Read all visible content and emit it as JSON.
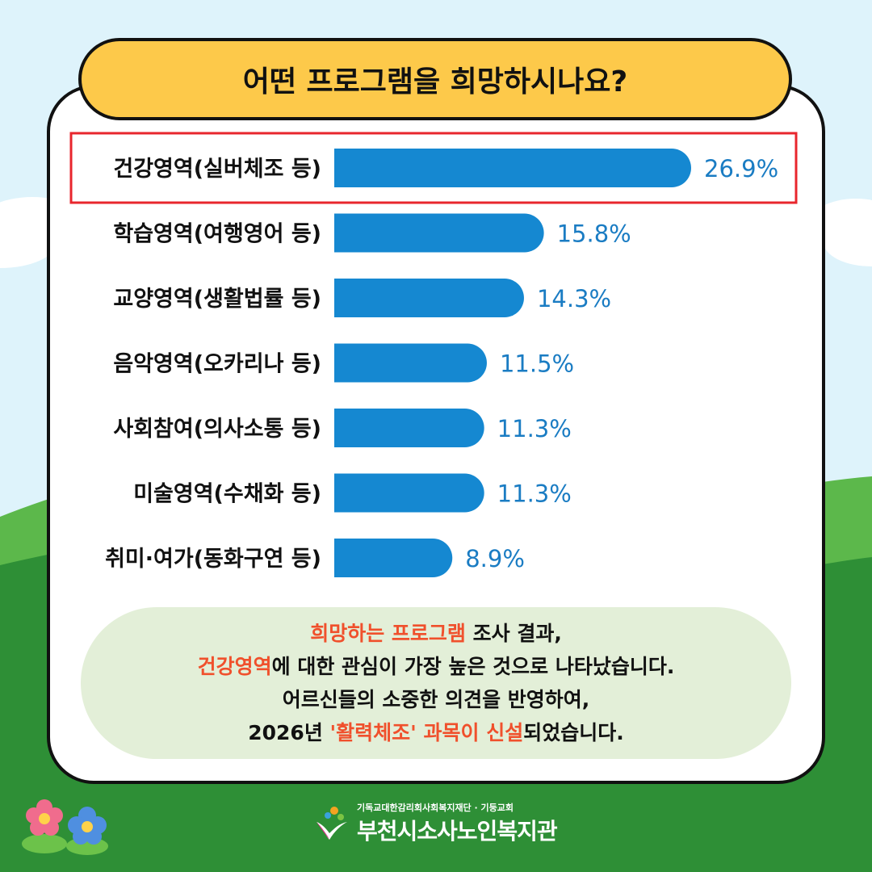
{
  "title": "어떤 프로그램을 희망하시나요?",
  "chart_data": {
    "type": "bar",
    "orientation": "horizontal",
    "categories": [
      "건강영역(실버체조 등)",
      "학습영역(여행영어 등)",
      "교양영역(생활법률 등)",
      "음악영역(오카리나 등)",
      "사회참여(의사소통 등)",
      "미술영역(수채화 등)",
      "취미·여가(동화구연 등)"
    ],
    "values": [
      26.9,
      15.8,
      14.3,
      11.5,
      11.3,
      11.3,
      8.9
    ],
    "value_labels": [
      "26.9%",
      "15.8%",
      "14.3%",
      "11.5%",
      "11.3%",
      "11.3%",
      "8.9%"
    ],
    "highlighted_category": "건강영역(실버체조 등)",
    "xlim": [
      0,
      26.9
    ],
    "grid": false,
    "bar_color": "#1588d1",
    "label_color": "#1a7cc3",
    "highlight_color": "#e8262d"
  },
  "summary": {
    "line1_hl": "희망하는 프로그램",
    "line1_rest": " 조사 결과,",
    "line2_hl": "건강영역",
    "line2_rest": "에 대한 관심이 가장 높은 것으로 나타났습니다.",
    "line3": "어르신들의 소중한 의견을 반영하여,",
    "line4_pre": "2026년 ",
    "line4_hl": "'활력체조' 과목이 신설",
    "line4_rest": "되었습니다."
  },
  "footer": {
    "org_top": "기독교대한감리회사회복지재단",
    "org_top2": "기둥교회",
    "org_main": "부천시소사노인복지관"
  },
  "colors": {
    "sky": "#def3fb",
    "grass": "#2e8f36",
    "title_bg": "#fdc94a",
    "accent": "#f0502c"
  }
}
